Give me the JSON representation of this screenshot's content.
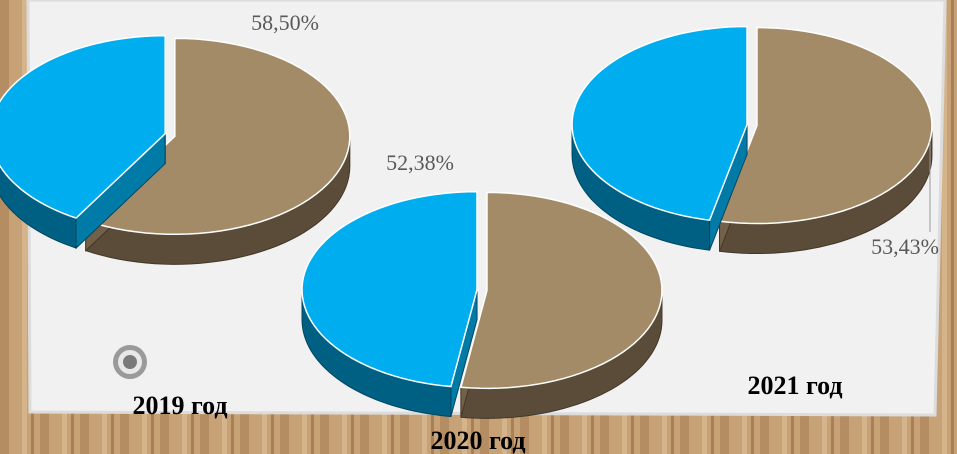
{
  "chart_data": [
    {
      "type": "pie",
      "title": "2019 год",
      "categories": [
        null,
        null
      ],
      "values": [
        58.5,
        41.5
      ],
      "value_labels": [
        "58,50%",
        null
      ],
      "colors": [
        "#a38b67",
        "#00aeef"
      ]
    },
    {
      "type": "pie",
      "title": "2020 год",
      "categories": [
        null,
        null
      ],
      "values": [
        52.38,
        47.62
      ],
      "value_labels": [
        "52,38%",
        null
      ],
      "colors": [
        "#a38b67",
        "#00aeef"
      ]
    },
    {
      "type": "pie",
      "title": "2021 год",
      "categories": [
        null,
        null
      ],
      "values": [
        53.43,
        46.57
      ],
      "value_labels": [
        "53,43%",
        null
      ],
      "colors": [
        "#a38b67",
        "#00aeef"
      ]
    }
  ]
}
